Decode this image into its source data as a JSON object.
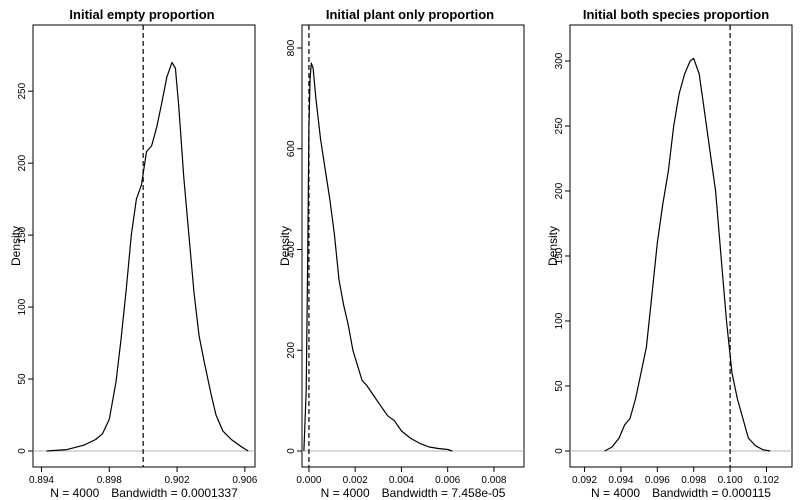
{
  "chart_data": [
    {
      "type": "line",
      "title": "Initial empty proportion",
      "ylabel": "Density",
      "subtitle_n": "N = 4000",
      "subtitle_bw": "Bandwidth = 0.0001337",
      "xlim": [
        0.8935,
        0.9066
      ],
      "ylim": [
        0,
        280
      ],
      "xticks": [
        0.894,
        0.898,
        0.902,
        0.906
      ],
      "xtick_labels": [
        "0.894",
        "0.898",
        "0.902",
        "0.906"
      ],
      "yticks": [
        0,
        50,
        100,
        150,
        200,
        250
      ],
      "ytick_labels": [
        "0",
        "50",
        "100",
        "150",
        "200",
        "250"
      ],
      "vline": 0.9,
      "x": [
        0.8943,
        0.8955,
        0.8965,
        0.8972,
        0.8976,
        0.898,
        0.8984,
        0.8987,
        0.899,
        0.8993,
        0.8996,
        0.8999,
        0.9002,
        0.9005,
        0.9008,
        0.9011,
        0.9014,
        0.9017,
        0.9019,
        0.9021,
        0.9024,
        0.9027,
        0.903,
        0.9033,
        0.9036,
        0.904,
        0.9043,
        0.9047,
        0.9052,
        0.9058,
        0.9062
      ],
      "y": [
        0,
        1,
        4,
        8,
        12,
        22,
        48,
        78,
        112,
        150,
        175,
        185,
        208,
        212,
        225,
        242,
        260,
        270,
        266,
        240,
        190,
        150,
        110,
        80,
        62,
        40,
        25,
        14,
        8,
        3,
        0
      ]
    },
    {
      "type": "line",
      "title": "Initial plant only proportion",
      "ylabel": "Density",
      "subtitle_n": "N = 4000",
      "subtitle_bw": "Bandwidth = 7.458e-05",
      "xlim": [
        -0.0003,
        0.0093
      ],
      "ylim": [
        0,
        800
      ],
      "xticks": [
        0,
        0.002,
        0.004,
        0.006,
        0.008
      ],
      "xtick_labels": [
        "0.000",
        "0.002",
        "0.004",
        "0.006",
        "0.008"
      ],
      "yticks": [
        0,
        200,
        400,
        600,
        800
      ],
      "ytick_labels": [
        "0",
        "200",
        "400",
        "600",
        "800"
      ],
      "vline": 0,
      "x": [
        -0.00022,
        -0.00012,
        -5e-05,
        0.0,
        5e-05,
        0.0001,
        0.00018,
        0.0003,
        0.0005,
        0.0007,
        0.0009,
        0.0011,
        0.0013,
        0.0015,
        0.0017,
        0.0019,
        0.0021,
        0.0023,
        0.0025,
        0.0028,
        0.0031,
        0.0034,
        0.0037,
        0.004,
        0.0044,
        0.0048,
        0.0052,
        0.0056,
        0.006,
        0.0062
      ],
      "y": [
        0,
        120,
        400,
        640,
        740,
        770,
        760,
        700,
        620,
        560,
        500,
        430,
        340,
        290,
        250,
        200,
        170,
        140,
        130,
        110,
        90,
        70,
        60,
        40,
        25,
        15,
        8,
        5,
        3,
        0
      ]
    },
    {
      "type": "line",
      "title": "Initial both species proportion",
      "ylabel": "Density",
      "subtitle_n": "N = 4000",
      "subtitle_bw": "Bandwidth = 0.000115",
      "xlim": [
        0.0912,
        0.1034
      ],
      "ylim": [
        0,
        310
      ],
      "xticks": [
        0.092,
        0.094,
        0.096,
        0.098,
        0.1,
        0.102
      ],
      "xtick_labels": [
        "0.092",
        "0.094",
        "0.096",
        "0.098",
        "0.100",
        "0.102"
      ],
      "yticks": [
        0,
        50,
        100,
        150,
        200,
        250,
        300
      ],
      "ytick_labels": [
        "0",
        "50",
        "100",
        "150",
        "200",
        "250",
        "300"
      ],
      "vline": 0.1,
      "x": [
        0.0931,
        0.0935,
        0.0939,
        0.0942,
        0.0945,
        0.0948,
        0.0951,
        0.0954,
        0.0957,
        0.096,
        0.0963,
        0.0966,
        0.0969,
        0.0972,
        0.0975,
        0.0978,
        0.098,
        0.0983,
        0.0986,
        0.0989,
        0.0992,
        0.0995,
        0.0998,
        0.1001,
        0.1004,
        0.1007,
        0.101,
        0.1014,
        0.1018,
        0.1022
      ],
      "y": [
        0,
        3,
        10,
        20,
        25,
        40,
        60,
        80,
        120,
        160,
        190,
        215,
        250,
        275,
        290,
        300,
        302,
        290,
        260,
        230,
        200,
        150,
        100,
        60,
        40,
        25,
        10,
        4,
        1,
        0
      ]
    }
  ]
}
